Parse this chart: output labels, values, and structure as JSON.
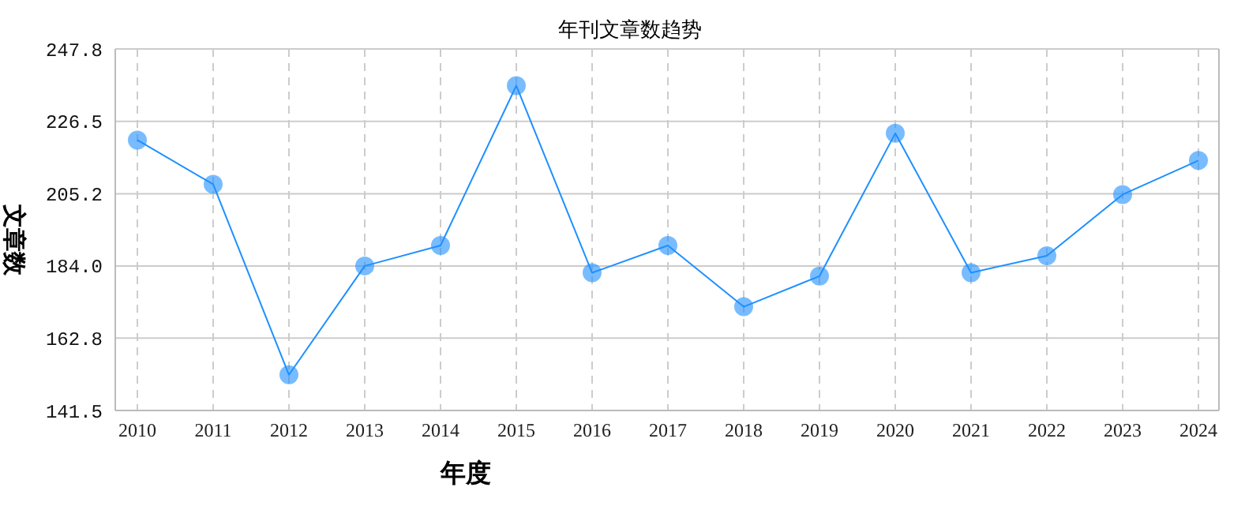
{
  "chart_data": {
    "type": "line",
    "title": "年刊文章数趋势",
    "xlabel": "年度",
    "ylabel": "文章数",
    "categories": [
      "2010",
      "2011",
      "2012",
      "2013",
      "2014",
      "2015",
      "2016",
      "2017",
      "2018",
      "2019",
      "2020",
      "2021",
      "2022",
      "2023",
      "2024"
    ],
    "series": [
      {
        "color": "#1e90ff",
        "values": [
          221,
          208,
          152,
          184,
          190,
          237,
          182,
          190,
          172,
          181,
          223,
          182,
          187,
          205,
          215
        ]
      }
    ],
    "ylim": [
      141.5,
      247.8
    ],
    "yticks": [
      141.5,
      162.8,
      {
        "value": 184,
        "label": "184.0"
      },
      205.2,
      226.5,
      247.8
    ],
    "grid": true,
    "marker": "circle",
    "line_style": "solid"
  }
}
